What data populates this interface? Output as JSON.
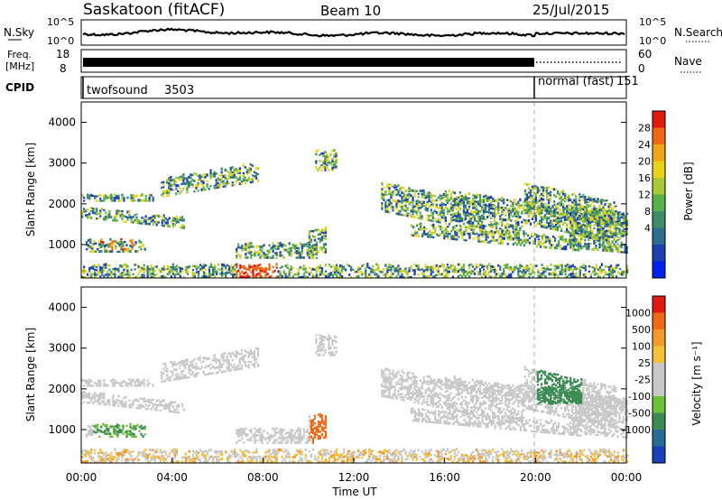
{
  "header": {
    "station": "Saskatoon (fitACF)",
    "beam": "Beam 10",
    "date": "25/Jul/2015"
  },
  "noise_panel": {
    "left_label": "N.Sky",
    "right_label": "N.Search",
    "left_ticks": [
      "10^5",
      "10^0"
    ],
    "right_ticks": [
      "10^5",
      "10^0"
    ]
  },
  "freq_panel": {
    "left_label_line1": "Freq.",
    "left_label_line2": "[MHz]",
    "right_label": "Nave",
    "left_ticks": [
      "18",
      "8"
    ],
    "right_ticks": [
      "60",
      "0"
    ]
  },
  "cpid_panel": {
    "label": "CPID",
    "segments": [
      {
        "name": "twofsound",
        "id": "3503"
      },
      {
        "name": "normal (fast)",
        "id": "151"
      }
    ]
  },
  "chart_data": [
    {
      "type": "heatmap",
      "panel": "power",
      "ylabel": "Slant Range [km]",
      "y_ticks": [
        "4000",
        "3000",
        "2000",
        "1000"
      ],
      "ylim": [
        180,
        4500
      ],
      "xlim": [
        "00:00",
        "24:00"
      ],
      "colorbar_label": "Power [dB]",
      "colorbar_ticks": [
        "28",
        "24",
        "20",
        "16",
        "12",
        "8",
        "4"
      ],
      "colors": [
        "#0022ee",
        "#1e3fb0",
        "#2e6d8e",
        "#3f8c6a",
        "#5ab04a",
        "#a9c934",
        "#e9d21a",
        "#f3a51a",
        "#ee6a12",
        "#e21a0c"
      ]
    },
    {
      "type": "heatmap",
      "panel": "velocity",
      "ylabel": "Slant Range [km]",
      "y_ticks": [
        "4000",
        "3000",
        "2000",
        "1000"
      ],
      "ylim": [
        180,
        4500
      ],
      "xlim": [
        "00:00",
        "24:00"
      ],
      "xlabel": "Time UT",
      "x_ticks": [
        "00:00",
        "04:00",
        "08:00",
        "12:00",
        "16:00",
        "20:00",
        "00:00"
      ],
      "colorbar_label": "Velocity [m s⁻¹]",
      "colorbar_ticks": [
        "1000",
        "500",
        "100",
        "25",
        "-25",
        "-100",
        "-500",
        "-1000"
      ],
      "colors": [
        "#1a3fb8",
        "#2a6d94",
        "#3b8b52",
        "#6cc13a",
        "#c8c8c8",
        "#c8c8c8",
        "#f1c23a",
        "#f39a2a",
        "#ee6a18",
        "#e01a0e"
      ]
    }
  ]
}
